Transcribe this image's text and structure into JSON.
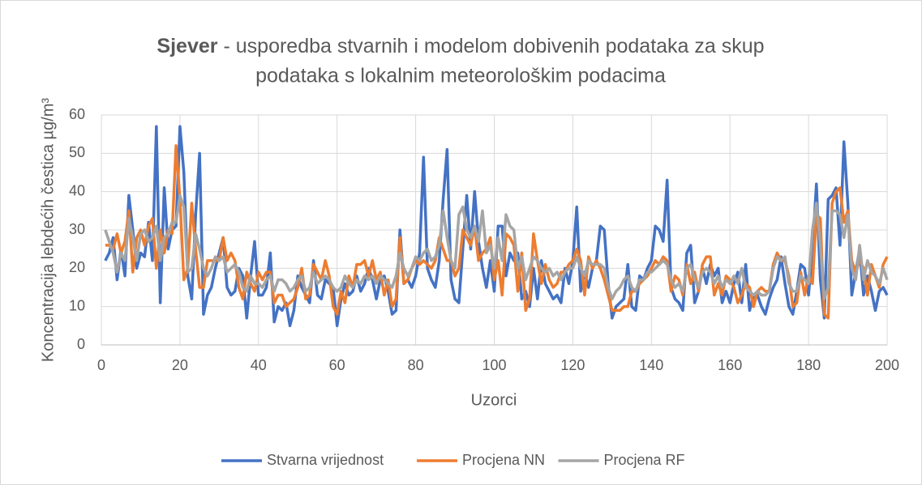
{
  "chart_data": {
    "type": "line",
    "title_bold": "Sjever",
    "title_line1": "- usporedba stvarnih i modelom dobivenih podataka za skup",
    "title_line2": "podataka s lokalnim meteorološkim podacima",
    "xlabel": "Uzorci",
    "ylabel": "Koncentracija lebdećih čestica µg/m³",
    "x": [
      1,
      2,
      3,
      4,
      5,
      6,
      7,
      8,
      9,
      10,
      11,
      12,
      13,
      14,
      15,
      16,
      17,
      18,
      19,
      20,
      21,
      22,
      23,
      24,
      25,
      26,
      27,
      28,
      29,
      30,
      31,
      32,
      33,
      34,
      35,
      36,
      37,
      38,
      39,
      40,
      41,
      42,
      43,
      44,
      45,
      46,
      47,
      48,
      49,
      50,
      51,
      52,
      53,
      54,
      55,
      56,
      57,
      58,
      59,
      60,
      61,
      62,
      63,
      64,
      65,
      66,
      67,
      68,
      69,
      70,
      71,
      72,
      73,
      74,
      75,
      76,
      77,
      78,
      79,
      80,
      81,
      82,
      83,
      84,
      85,
      86,
      87,
      88,
      89,
      90,
      91,
      92,
      93,
      94,
      95,
      96,
      97,
      98,
      99,
      100,
      101,
      102,
      103,
      104,
      105,
      106,
      107,
      108,
      109,
      110,
      111,
      112,
      113,
      114,
      115,
      116,
      117,
      118,
      119,
      120,
      121,
      122,
      123,
      124,
      125,
      126,
      127,
      128,
      129,
      130,
      131,
      132,
      133,
      134,
      135,
      136,
      137,
      138,
      139,
      140,
      141,
      142,
      143,
      144,
      145,
      146,
      147,
      148,
      149,
      150,
      151,
      152,
      153,
      154,
      155,
      156,
      157,
      158,
      159,
      160,
      161,
      162,
      163,
      164,
      165,
      166,
      167,
      168,
      169,
      170,
      171,
      172,
      173,
      174,
      175,
      176,
      177,
      178,
      179,
      180,
      181,
      182,
      183,
      184,
      185,
      186,
      187,
      188,
      189,
      190,
      191,
      192,
      193,
      194,
      195,
      196,
      197,
      198,
      199,
      200
    ],
    "series": [
      {
        "name": "Stvarna vrijednost",
        "color": "#4472c4",
        "values": [
          22,
          24,
          28,
          17,
          25,
          18,
          39,
          30,
          20,
          24,
          23,
          32,
          22,
          57,
          11,
          41,
          25,
          30,
          31,
          57,
          45,
          18,
          12,
          34,
          50,
          8,
          13,
          15,
          20,
          24,
          28,
          15,
          13,
          14,
          20,
          18,
          7,
          18,
          27,
          13,
          13,
          15,
          24,
          6,
          10,
          9,
          11,
          5,
          9,
          18,
          15,
          13,
          11,
          22,
          13,
          12,
          17,
          16,
          15,
          5,
          12,
          16,
          13,
          14,
          18,
          14,
          16,
          20,
          17,
          12,
          17,
          18,
          14,
          8,
          9,
          30,
          16,
          17,
          15,
          18,
          24,
          49,
          20,
          17,
          15,
          22,
          38,
          51,
          17,
          12,
          11,
          25,
          39,
          25,
          40,
          27,
          20,
          15,
          22,
          14,
          31,
          31,
          18,
          24,
          22,
          24,
          12,
          14,
          10,
          20,
          12,
          22,
          16,
          14,
          12,
          13,
          11,
          20,
          16,
          22,
          36,
          14,
          19,
          15,
          20,
          22,
          31,
          30,
          16,
          7,
          10,
          11,
          12,
          21,
          10,
          9,
          18,
          17,
          20,
          22,
          31,
          30,
          27,
          43,
          15,
          12,
          11,
          9,
          24,
          26,
          11,
          14,
          20,
          16,
          21,
          18,
          20,
          11,
          14,
          11,
          16,
          19,
          11,
          21,
          9,
          13,
          13,
          10,
          8,
          12,
          15,
          17,
          23,
          16,
          10,
          8,
          14,
          21,
          20,
          13,
          25,
          42,
          17,
          7,
          38,
          39,
          41,
          26,
          53,
          37,
          13,
          19,
          25,
          13,
          18,
          14,
          9,
          14,
          15,
          13
        ]
      },
      {
        "name": "Procjena NN",
        "color": "#ed7d31",
        "values": [
          26,
          26,
          25,
          29,
          24,
          27,
          35,
          19,
          28,
          30,
          26,
          31,
          33,
          20,
          30,
          24,
          30,
          29,
          52,
          38,
          17,
          20,
          37,
          25,
          15,
          15,
          22,
          22,
          22,
          22,
          28,
          22,
          24,
          22,
          15,
          12,
          19,
          16,
          14,
          19,
          17,
          19,
          19,
          11,
          13,
          13,
          10,
          11,
          12,
          15,
          20,
          12,
          13,
          21,
          19,
          17,
          22,
          18,
          10,
          8,
          14,
          11,
          18,
          15,
          21,
          21,
          22,
          18,
          22,
          17,
          19,
          13,
          17,
          10,
          12,
          28,
          16,
          17,
          20,
          22,
          21,
          22,
          21,
          20,
          22,
          28,
          25,
          22,
          22,
          18,
          20,
          30,
          28,
          26,
          31,
          22,
          24,
          25,
          28,
          17,
          22,
          13,
          29,
          28,
          26,
          14,
          24,
          9,
          12,
          29,
          22,
          16,
          21,
          17,
          15,
          16,
          19,
          19,
          21,
          22,
          25,
          22,
          13,
          23,
          20,
          22,
          20,
          17,
          13,
          9,
          9,
          9,
          10,
          10,
          14,
          14,
          16,
          17,
          18,
          20,
          22,
          21,
          23,
          22,
          14,
          18,
          17,
          13,
          21,
          16,
          19,
          14,
          21,
          23,
          23,
          13,
          16,
          13,
          18,
          17,
          15,
          11,
          13,
          16,
          15,
          10,
          14,
          15,
          14,
          14,
          21,
          24,
          22,
          22,
          18,
          10,
          11,
          19,
          13,
          18,
          16,
          34,
          33,
          8,
          7,
          37,
          40,
          41,
          32,
          35,
          22,
          19,
          22,
          20,
          13,
          21,
          18,
          15,
          21,
          23
        ]
      },
      {
        "name": "Procjena RF",
        "color": "#a5a5a5",
        "values": [
          30,
          27,
          24,
          19,
          24,
          22,
          33,
          28,
          22,
          29,
          30,
          27,
          28,
          31,
          22,
          28,
          29,
          32,
          32,
          39,
          36,
          19,
          20,
          29,
          25,
          20,
          18,
          20,
          23,
          22,
          23,
          19,
          20,
          21,
          19,
          15,
          14,
          18,
          16,
          16,
          15,
          17,
          18,
          14,
          17,
          17,
          16,
          14,
          15,
          17,
          18,
          14,
          15,
          19,
          16,
          17,
          18,
          17,
          15,
          14,
          15,
          18,
          16,
          15,
          17,
          16,
          18,
          17,
          18,
          16,
          18,
          17,
          16,
          15,
          18,
          24,
          20,
          18,
          20,
          23,
          22,
          24,
          25,
          22,
          23,
          26,
          35,
          28,
          22,
          20,
          34,
          36,
          30,
          28,
          31,
          27,
          35,
          24,
          26,
          20,
          28,
          22,
          34,
          31,
          30,
          20,
          23,
          17,
          20,
          23,
          22,
          20,
          19,
          20,
          18,
          19,
          17,
          19,
          20,
          20,
          23,
          20,
          18,
          22,
          21,
          21,
          21,
          20,
          15,
          12,
          14,
          15,
          17,
          18,
          15,
          14,
          17,
          17,
          19,
          19,
          20,
          21,
          22,
          21,
          17,
          15,
          16,
          14,
          20,
          21,
          17,
          15,
          19,
          20,
          19,
          16,
          18,
          15,
          17,
          16,
          18,
          16,
          20,
          15,
          14,
          13,
          14,
          13,
          13,
          14,
          20,
          23,
          22,
          23,
          16,
          14,
          14,
          18,
          17,
          16,
          30,
          37,
          26,
          12,
          15,
          35,
          35,
          34,
          28,
          34,
          20,
          17,
          26,
          17,
          22,
          19,
          18,
          16,
          20,
          17
        ]
      }
    ],
    "xlim": [
      0,
      200
    ],
    "xticks": [
      0,
      20,
      40,
      60,
      80,
      100,
      120,
      140,
      160,
      180,
      200
    ],
    "ylim": [
      0,
      60
    ],
    "yticks": [
      0,
      10,
      20,
      30,
      40,
      50,
      60
    ],
    "grid": true,
    "legend": "bottom"
  }
}
